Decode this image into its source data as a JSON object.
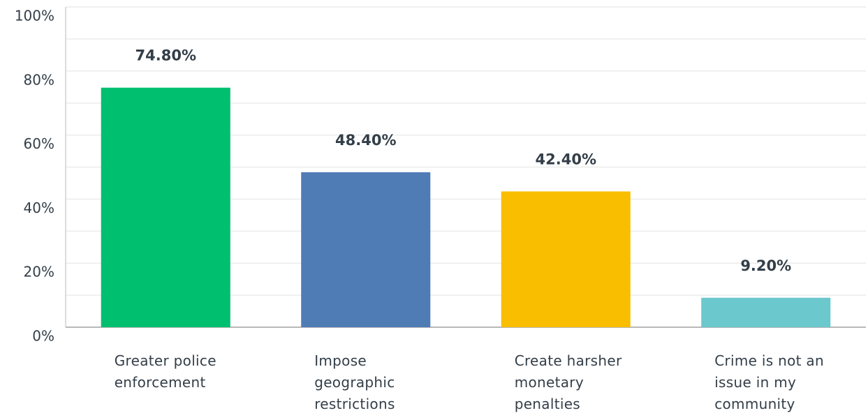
{
  "chart_data": {
    "type": "bar",
    "categories": [
      "Greater police enforcement",
      "Impose geographic restrictions",
      "Create harsher monetary penalties",
      "Crime is not an issue in my community"
    ],
    "values": [
      74.8,
      48.4,
      42.4,
      9.2
    ],
    "value_labels": [
      "74.80%",
      "48.40%",
      "42.40%",
      "9.20%"
    ],
    "colors": [
      "#00bf6f",
      "#507cb6",
      "#f9be00",
      "#6bc8cd"
    ],
    "ylim": [
      0,
      100
    ],
    "yticks": [
      {
        "value": 0,
        "label": "0%"
      },
      {
        "value": 20,
        "label": "20%"
      },
      {
        "value": 40,
        "label": "40%"
      },
      {
        "value": 60,
        "label": "60%"
      },
      {
        "value": 80,
        "label": "80%"
      },
      {
        "value": 100,
        "label": "100%"
      }
    ],
    "minor_yticks": [
      10,
      30,
      50,
      70,
      90
    ],
    "grid": true
  }
}
